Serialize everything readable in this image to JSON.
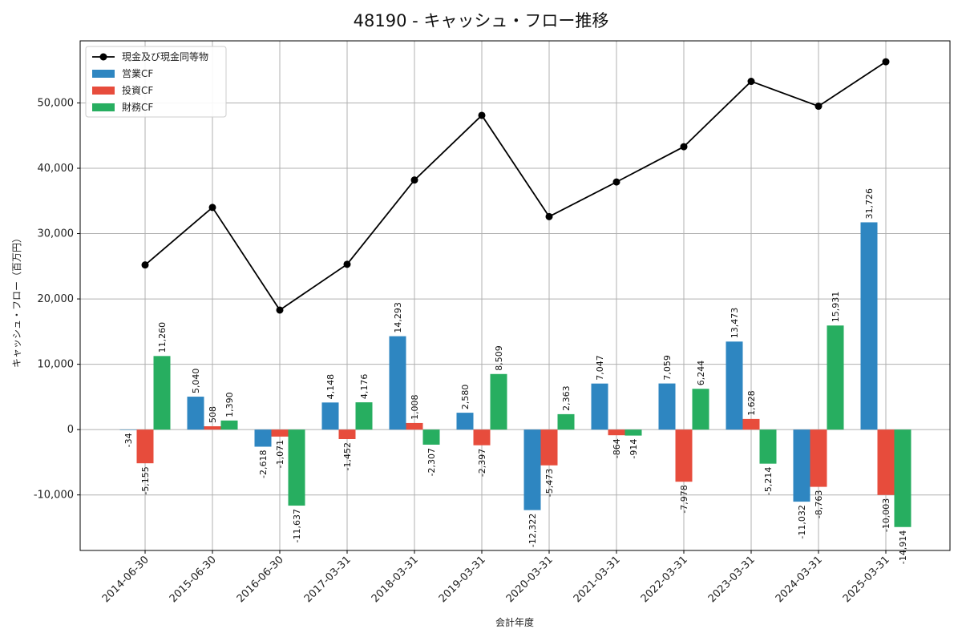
{
  "chart_data": {
    "type": "bar",
    "title": "48190 - キャッシュ・フロー推移",
    "xlabel": "会計年度",
    "ylabel": "キャッシュ・フロー（百万円）",
    "ylim": [
      -18500,
      59500
    ],
    "yticks": [
      -10000,
      0,
      10000,
      20000,
      30000,
      40000,
      50000
    ],
    "ytick_labels": [
      "-10,000",
      "0",
      "10,000",
      "20,000",
      "30,000",
      "40,000",
      "50,000"
    ],
    "grid": true,
    "legend_position": "top-left",
    "categories": [
      "2014-06-30",
      "2015-06-30",
      "2016-06-30",
      "2017-03-31",
      "2018-03-31",
      "2019-03-31",
      "2020-03-31",
      "2021-03-31",
      "2022-03-31",
      "2023-03-31",
      "2024-03-31",
      "2025-03-31"
    ],
    "series": [
      {
        "name": "営業CF",
        "kind": "bar",
        "color": "#2e86c1",
        "values": [
          -34,
          5040,
          -2618,
          4148,
          14293,
          2580,
          -12322,
          7047,
          7059,
          13473,
          -11032,
          31726
        ],
        "labels": [
          "-34",
          "5,040",
          "-2,618",
          "4,148",
          "14,293",
          "2,580",
          "-12,322",
          "7,047",
          "7,059",
          "13,473",
          "-11,032",
          "31,726"
        ]
      },
      {
        "name": "投資CF",
        "kind": "bar",
        "color": "#e74c3c",
        "values": [
          -5155,
          508,
          -1071,
          -1452,
          1008,
          -2397,
          -5473,
          -864,
          -7978,
          1628,
          -8763,
          -10003
        ],
        "labels": [
          "-5,155",
          "508",
          "-1,071",
          "-1,452",
          "1,008",
          "-2,397",
          "-5,473",
          "-864",
          "-7,978",
          "1,628",
          "-8,763",
          "-10,003"
        ]
      },
      {
        "name": "財務CF",
        "kind": "bar",
        "color": "#27ae60",
        "values": [
          11260,
          1390,
          -11637,
          4176,
          -2307,
          8509,
          2363,
          -914,
          6244,
          -5214,
          15931,
          -14914
        ],
        "labels": [
          "11,260",
          "1,390",
          "-11,637",
          "4,176",
          "-2,307",
          "8,509",
          "2,363",
          "-914",
          "6,244",
          "-5,214",
          "15,931",
          "-14,914"
        ]
      },
      {
        "name": "現金及び現金同等物",
        "kind": "line",
        "color": "#000000",
        "values": [
          25200,
          34000,
          18300,
          25300,
          38200,
          48100,
          32600,
          37900,
          43300,
          53300,
          49500,
          56300
        ]
      }
    ]
  }
}
